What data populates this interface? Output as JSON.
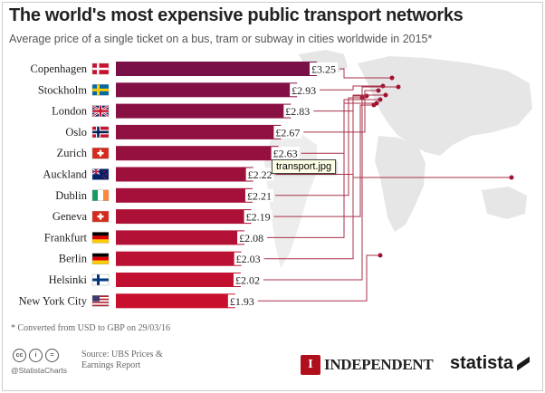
{
  "header": {
    "title": "The world's most expensive public transport networks",
    "subtitle": "Average price of a single ticket on a bus, tram or subway in cities worldwide in 2015*"
  },
  "chart_data": {
    "type": "bar",
    "orientation": "horizontal",
    "title": "The world's most expensive public transport networks",
    "subtitle": "Average price of a single ticket on a bus, tram or subway in cities worldwide in 2015*",
    "categories": [
      "Copenhagen",
      "Stockholm",
      "London",
      "Oslo",
      "Zurich",
      "Auckland",
      "Dublin",
      "Geneva",
      "Frankfurt",
      "Berlin",
      "Helsinki",
      "New York City"
    ],
    "flags": [
      "denmark",
      "sweden",
      "united-kingdom",
      "norway",
      "switzerland",
      "new-zealand",
      "ireland",
      "switzerland",
      "germany",
      "germany",
      "finland",
      "united-states"
    ],
    "values": [
      3.25,
      2.93,
      2.83,
      2.67,
      2.63,
      2.22,
      2.21,
      2.19,
      2.08,
      2.03,
      2.02,
      1.93
    ],
    "labels": [
      "£3.25",
      "£2.93",
      "£2.83",
      "£2.67",
      "£2.63",
      "£2.22",
      "£2.21",
      "£2.19",
      "£2.08",
      "£2.03",
      "£2.02",
      "£1.93"
    ],
    "currency": "GBP",
    "xlim": [
      0,
      3.25
    ],
    "colors": {
      "bar_top": "#7a1048",
      "bar_bottom": "#c8102e",
      "leader_line": "#a8324a",
      "map": "#e4e4e4"
    }
  },
  "footnote": "* Converted from USD to GBP on 29/03/16",
  "attribution": {
    "license_icons": [
      "cc",
      "i",
      "="
    ],
    "handle": "@StatistaCharts",
    "source_line1": "Source: UBS Prices &",
    "source_line2": "Earnings Report"
  },
  "logos": {
    "independent_mark": "I",
    "independent_name": "INDEPENDENT",
    "statista_name": "statista"
  },
  "tooltip": {
    "text": "transport.jpg"
  }
}
